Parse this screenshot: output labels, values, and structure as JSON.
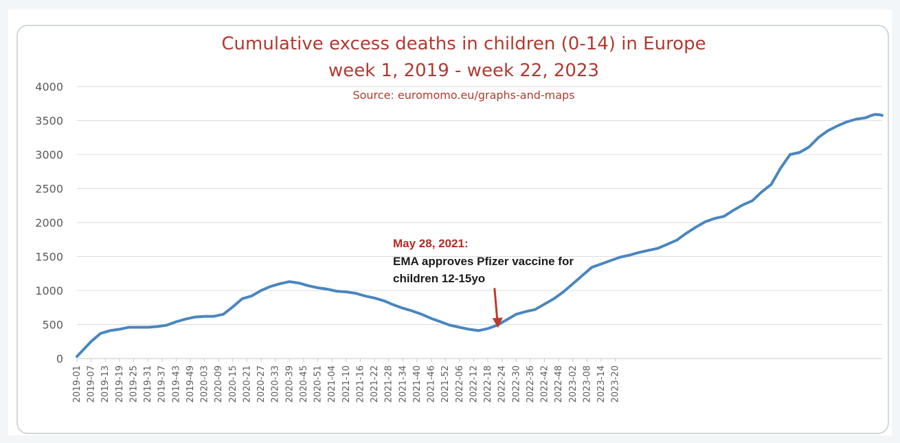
{
  "chart_data": {
    "type": "line",
    "title": "Cumulative excess deaths in children (0-14) in Europe",
    "subtitle": "week 1, 2019 - week 22, 2023",
    "source": "Source: euromomo.eu/graphs-and-maps",
    "xlabel": "",
    "ylabel": "",
    "ylim": [
      0,
      4000
    ],
    "yticks": [
      0,
      500,
      1000,
      1500,
      2000,
      2500,
      3000,
      3500,
      4000
    ],
    "grid": true,
    "legend": "none",
    "x_tick_labels": [
      "2019-01",
      "2019-07",
      "2019-13",
      "2019-19",
      "2019-25",
      "2019-31",
      "2019-37",
      "2019-43",
      "2019-49",
      "2020-03",
      "2020-09",
      "2020-15",
      "2020-21",
      "2020-27",
      "2020-33",
      "2020-39",
      "2020-45",
      "2020-51",
      "2021-04",
      "2021-10",
      "2021-16",
      "2021-22",
      "2021-28",
      "2021-34",
      "2021-40",
      "2021-46",
      "2021-52",
      "2022-06",
      "2022-12",
      "2022-18",
      "2022-24",
      "2022-30",
      "2022-36",
      "2022-42",
      "2022-48",
      "2023-02",
      "2023-08",
      "2023-14",
      "2023-20"
    ],
    "line_color": "#4a86bf",
    "series": [
      {
        "points": [
          [
            0,
            30
          ],
          [
            6,
            250
          ],
          [
            10,
            370
          ],
          [
            14,
            410
          ],
          [
            18,
            430
          ],
          [
            22,
            460
          ],
          [
            26,
            460
          ],
          [
            30,
            460
          ],
          [
            34,
            470
          ],
          [
            38,
            490
          ],
          [
            42,
            540
          ],
          [
            46,
            580
          ],
          [
            50,
            610
          ],
          [
            54,
            620
          ],
          [
            58,
            620
          ],
          [
            62,
            650
          ],
          [
            66,
            760
          ],
          [
            70,
            880
          ],
          [
            74,
            920
          ],
          [
            78,
            1000
          ],
          [
            82,
            1060
          ],
          [
            86,
            1100
          ],
          [
            90,
            1130
          ],
          [
            94,
            1110
          ],
          [
            98,
            1070
          ],
          [
            102,
            1040
          ],
          [
            106,
            1020
          ],
          [
            110,
            990
          ],
          [
            114,
            980
          ],
          [
            118,
            960
          ],
          [
            122,
            920
          ],
          [
            126,
            890
          ],
          [
            130,
            850
          ],
          [
            134,
            790
          ],
          [
            138,
            740
          ],
          [
            142,
            700
          ],
          [
            146,
            650
          ],
          [
            150,
            590
          ],
          [
            154,
            540
          ],
          [
            158,
            490
          ],
          [
            162,
            460
          ],
          [
            166,
            430
          ],
          [
            170,
            410
          ],
          [
            174,
            440
          ],
          [
            178,
            490
          ],
          [
            182,
            570
          ],
          [
            186,
            650
          ],
          [
            190,
            690
          ],
          [
            194,
            720
          ],
          [
            198,
            800
          ],
          [
            202,
            880
          ],
          [
            206,
            980
          ],
          [
            210,
            1100
          ],
          [
            214,
            1220
          ],
          [
            218,
            1340
          ],
          [
            222,
            1390
          ],
          [
            226,
            1440
          ],
          [
            230,
            1490
          ],
          [
            234,
            1520
          ],
          [
            238,
            1560
          ],
          [
            242,
            1590
          ],
          [
            246,
            1620
          ],
          [
            250,
            1680
          ],
          [
            254,
            1740
          ],
          [
            258,
            1840
          ],
          [
            262,
            1930
          ],
          [
            266,
            2010
          ],
          [
            270,
            2060
          ],
          [
            274,
            2090
          ],
          [
            278,
            2180
          ],
          [
            282,
            2260
          ],
          [
            286,
            2320
          ],
          [
            290,
            2450
          ],
          [
            294,
            2560
          ],
          [
            298,
            2800
          ],
          [
            302,
            3000
          ],
          [
            306,
            3030
          ],
          [
            310,
            3110
          ],
          [
            314,
            3250
          ],
          [
            318,
            3350
          ],
          [
            322,
            3420
          ],
          [
            326,
            3480
          ],
          [
            330,
            3520
          ],
          [
            334,
            3540
          ],
          [
            336,
            3570
          ],
          [
            338,
            3590
          ],
          [
            340,
            3585
          ],
          [
            341,
            3575
          ]
        ]
      }
    ],
    "annotation": {
      "date": "May 28, 2021:",
      "line1": "EMA approves Pfizer vaccine for",
      "line2": "children 12-15yo",
      "arrow_color": "#c0392b",
      "target_x": 178,
      "target_y": 430
    }
  }
}
